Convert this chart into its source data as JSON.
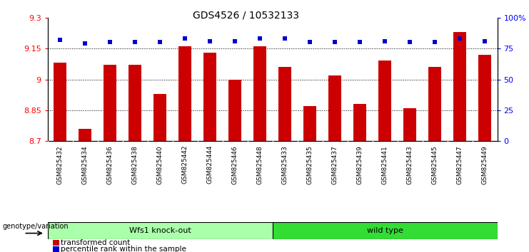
{
  "title": "GDS4526 / 10532133",
  "samples": [
    "GSM825432",
    "GSM825434",
    "GSM825436",
    "GSM825438",
    "GSM825440",
    "GSM825442",
    "GSM825444",
    "GSM825446",
    "GSM825448",
    "GSM825433",
    "GSM825435",
    "GSM825437",
    "GSM825439",
    "GSM825441",
    "GSM825443",
    "GSM825445",
    "GSM825447",
    "GSM825449"
  ],
  "bar_values": [
    9.08,
    8.76,
    9.07,
    9.07,
    8.93,
    9.16,
    9.13,
    9.0,
    9.16,
    9.06,
    8.87,
    9.02,
    8.88,
    9.09,
    8.86,
    9.06,
    9.23,
    9.12
  ],
  "dot_values": [
    82,
    79,
    80,
    80,
    80,
    83,
    81,
    81,
    83,
    83,
    80,
    80,
    80,
    81,
    80,
    80,
    83,
    81
  ],
  "group1_count": 9,
  "group2_count": 9,
  "group1_label": "Wfs1 knock-out",
  "group2_label": "wild type",
  "group1_color": "#aaffaa",
  "group2_color": "#33dd33",
  "bar_color": "#CC0000",
  "dot_color": "#0000CC",
  "ylim_left": [
    8.7,
    9.3
  ],
  "ylim_right": [
    0,
    100
  ],
  "yticks_left": [
    8.7,
    8.85,
    9.0,
    9.15,
    9.3
  ],
  "yticks_right": [
    0,
    25,
    50,
    75,
    100
  ],
  "ytick_labels_left": [
    "8.7",
    "8.85",
    "9",
    "9.15",
    "9.3"
  ],
  "ytick_labels_right": [
    "0",
    "25",
    "50",
    "75",
    "100%"
  ],
  "grid_values": [
    8.85,
    9.0,
    9.15
  ],
  "legend_labels": [
    "transformed count",
    "percentile rank within the sample"
  ],
  "genotype_label": "genotype/variation",
  "background_color": "#ffffff",
  "plot_bg_color": "#ffffff",
  "tick_area_color": "#cccccc"
}
